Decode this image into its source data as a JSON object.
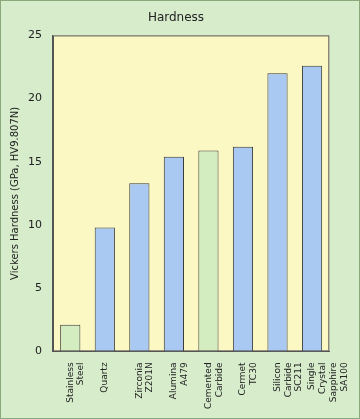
{
  "chart_data": {
    "type": "bar",
    "title": "Hardness",
    "y_label": "Vickers Hardness (GPa, HV9.807N)",
    "categories": [
      [
        "Stainless",
        "Steel"
      ],
      [
        "Quartz"
      ],
      [
        "Zirconia",
        "Z201N"
      ],
      [
        "Alumina",
        "A479"
      ],
      [
        "Cemented",
        "Carbide"
      ],
      [
        "Cermet",
        "TC30"
      ],
      [
        "Silicon",
        "Carbide",
        "SC211"
      ],
      [
        "Single",
        "Crystal",
        "Sapphire",
        "SA100"
      ]
    ],
    "values": [
      2.1,
      9.8,
      13.3,
      15.4,
      15.9,
      16.2,
      22.0,
      22.6
    ],
    "colors": [
      "#d3edc0",
      "#a9c9f2",
      "#a9c9f2",
      "#a9c9f2",
      "#d3edc0",
      "#a9c9f2",
      "#a9c9f2",
      "#a9c9f2"
    ],
    "ylim": [
      0,
      25
    ],
    "yticks": [
      0,
      5,
      10,
      15,
      20,
      25
    ],
    "grid": false
  }
}
